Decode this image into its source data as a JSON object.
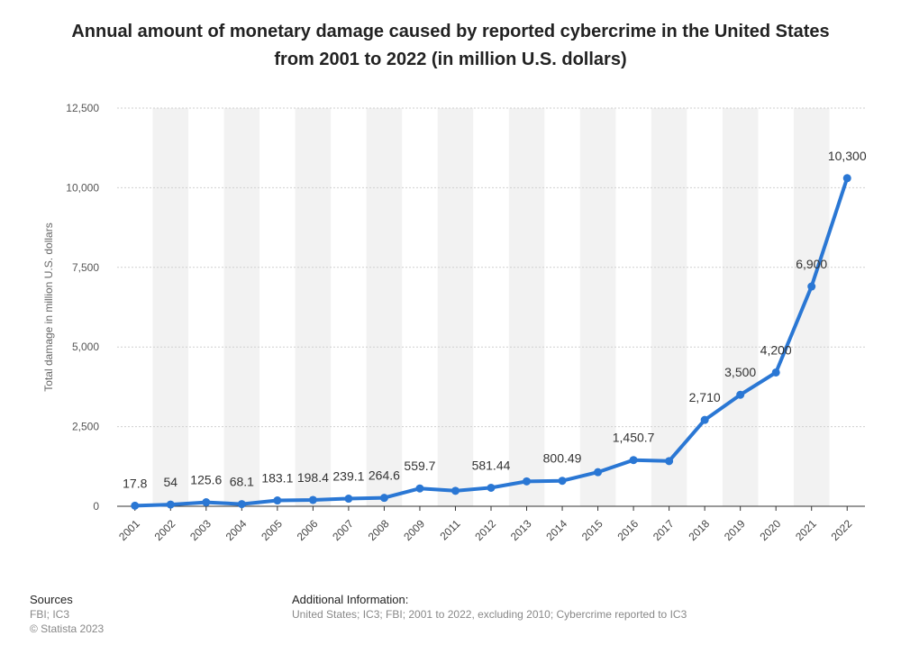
{
  "title": "Annual amount of monetary damage caused by reported cybercrime in the United States from 2001 to 2022 (in million U.S. dollars)",
  "sources": {
    "heading": "Sources",
    "lines": [
      "FBI; IC3",
      "© Statista 2023"
    ]
  },
  "additional": {
    "heading": "Additional Information:",
    "text": "United States; IC3; FBI; 2001 to 2022, excluding 2010; Cybercrime reported to IC3"
  },
  "colors": {
    "line": "#2a77d4",
    "band": "#f2f2f2",
    "grid": "#cfcfcf"
  },
  "chart_data": {
    "type": "line",
    "title": "Annual amount of monetary damage caused by reported cybercrime in the United States from 2001 to 2022 (in million U.S. dollars)",
    "xlabel": "",
    "ylabel": "Total damage in million U.S. dollars",
    "ylim": [
      0,
      12500
    ],
    "yticks": [
      0,
      2500,
      5000,
      7500,
      10000,
      12500
    ],
    "ytick_labels": [
      "0",
      "2,500",
      "5,000",
      "7,500",
      "10,000",
      "12,500"
    ],
    "grid": true,
    "categories": [
      "2001",
      "2002",
      "2003",
      "2004",
      "2005",
      "2006",
      "2007",
      "2008",
      "2009",
      "2011",
      "2012",
      "2013",
      "2014",
      "2015",
      "2016",
      "2017",
      "2018",
      "2019",
      "2020",
      "2021",
      "2022"
    ],
    "values": [
      17.8,
      54,
      125.6,
      68.1,
      183.1,
      198.4,
      239.1,
      264.6,
      559.7,
      485.3,
      581.44,
      781.84,
      800.49,
      1070.7,
      1450.7,
      1418.7,
      2710,
      3500,
      4200,
      6900,
      10300
    ],
    "data_labels": [
      "17.8",
      "54",
      "125.6",
      "68.1",
      "183.1",
      "198.4",
      "239.1",
      "264.6",
      "559.7",
      "",
      "581.44",
      "",
      "800.49",
      "",
      "1,450.7",
      "",
      "2,710",
      "3,500",
      "4,200",
      "6,900",
      "10,300"
    ]
  }
}
